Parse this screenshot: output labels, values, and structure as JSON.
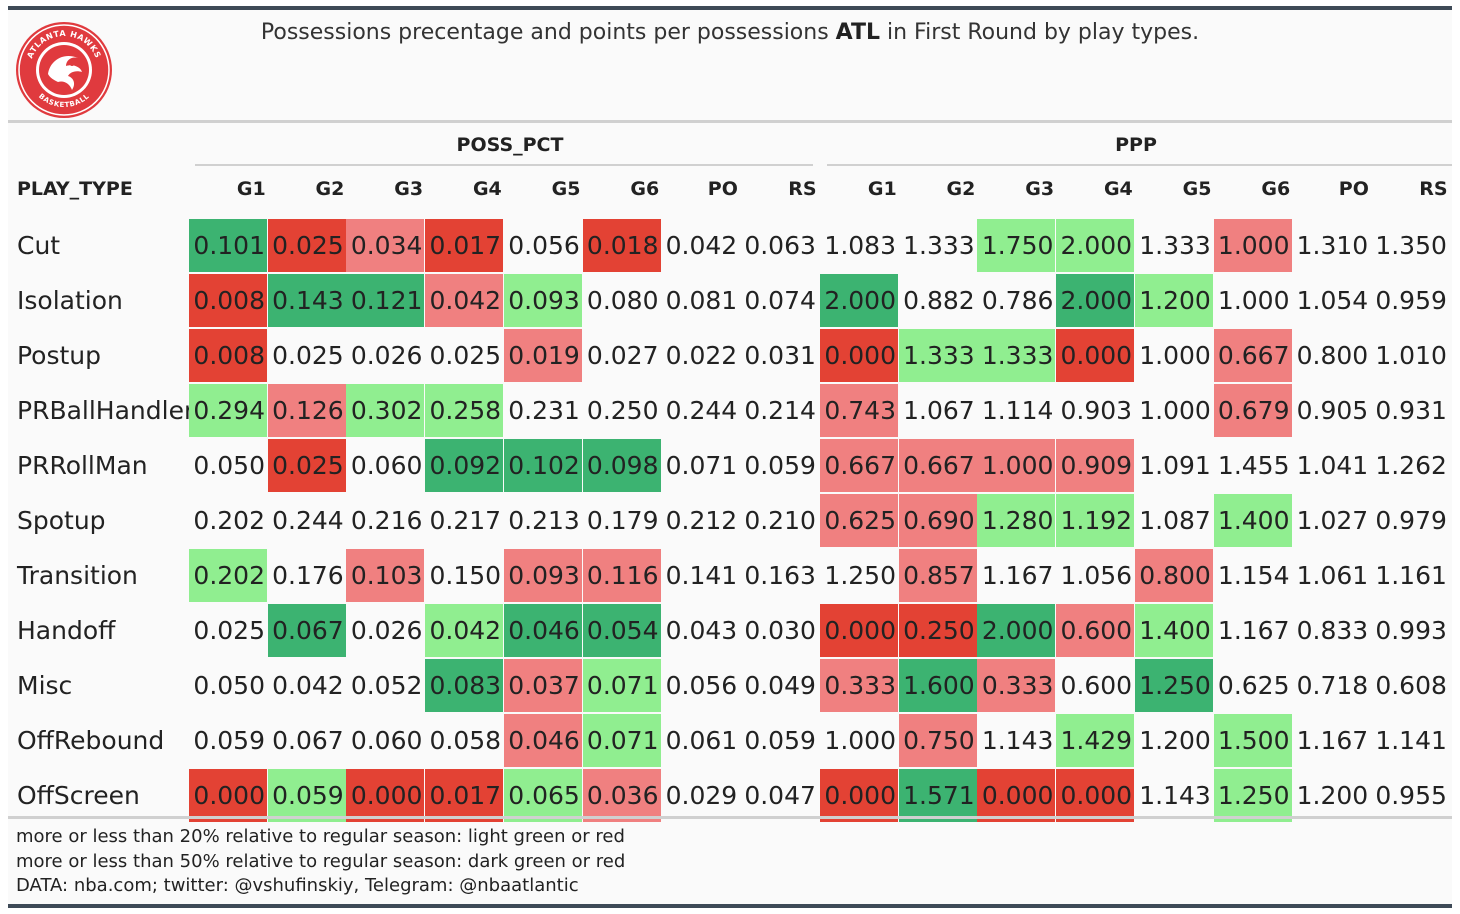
{
  "title": {
    "before": "Possessions precentage and points per possessions ",
    "team": "ATL",
    "after": " in First Round by play types."
  },
  "logo": {
    "ring_top_text": "ATLANTA HAWKS",
    "ring_bottom_text": "BASKETBALL",
    "colors": {
      "red": "#e03a3e",
      "white": "#ffffff"
    }
  },
  "groups": {
    "poss": "POSS_PCT",
    "ppp": "PPP"
  },
  "row_header": "PLAY_TYPE",
  "columns": [
    "G1",
    "G2",
    "G3",
    "G4",
    "G5",
    "G6",
    "PO",
    "RS"
  ],
  "colors": {
    "dark_green": "#3cb371",
    "light_green": "#90ee90",
    "light_red": "#f08080",
    "dark_red": "#e34234",
    "none": "transparent"
  },
  "rows": [
    {
      "play_type": "Cut",
      "poss": [
        "0.101",
        "0.025",
        "0.034",
        "0.017",
        "0.056",
        "0.018",
        "0.042",
        "0.063"
      ],
      "poss_c": [
        "dg",
        "dr",
        "lr",
        "dr",
        "",
        "dr",
        "",
        ""
      ],
      "ppp": [
        "1.083",
        "1.333",
        "1.750",
        "2.000",
        "1.333",
        "1.000",
        "1.310",
        "1.350"
      ],
      "ppp_c": [
        "",
        "",
        "lg",
        "lg",
        "",
        "lr",
        "",
        ""
      ]
    },
    {
      "play_type": "Isolation",
      "poss": [
        "0.008",
        "0.143",
        "0.121",
        "0.042",
        "0.093",
        "0.080",
        "0.081",
        "0.074"
      ],
      "poss_c": [
        "dr",
        "dg",
        "dg",
        "lr",
        "lg",
        "",
        "",
        ""
      ],
      "ppp": [
        "2.000",
        "0.882",
        "0.786",
        "2.000",
        "1.200",
        "1.000",
        "1.054",
        "0.959"
      ],
      "ppp_c": [
        "dg",
        "",
        "",
        "dg",
        "lg",
        "",
        "",
        ""
      ]
    },
    {
      "play_type": "Postup",
      "poss": [
        "0.008",
        "0.025",
        "0.026",
        "0.025",
        "0.019",
        "0.027",
        "0.022",
        "0.031"
      ],
      "poss_c": [
        "dr",
        "",
        "",
        "",
        "lr",
        "",
        "",
        ""
      ],
      "ppp": [
        "0.000",
        "1.333",
        "1.333",
        "0.000",
        "1.000",
        "0.667",
        "0.800",
        "1.010"
      ],
      "ppp_c": [
        "dr",
        "lg",
        "lg",
        "dr",
        "",
        "lr",
        "",
        ""
      ]
    },
    {
      "play_type": "PRBallHandler",
      "poss": [
        "0.294",
        "0.126",
        "0.302",
        "0.258",
        "0.231",
        "0.250",
        "0.244",
        "0.214"
      ],
      "poss_c": [
        "lg",
        "lr",
        "lg",
        "lg",
        "",
        "",
        "",
        ""
      ],
      "ppp": [
        "0.743",
        "1.067",
        "1.114",
        "0.903",
        "1.000",
        "0.679",
        "0.905",
        "0.931"
      ],
      "ppp_c": [
        "lr",
        "",
        "",
        "",
        "",
        "lr",
        "",
        ""
      ]
    },
    {
      "play_type": "PRRollMan",
      "poss": [
        "0.050",
        "0.025",
        "0.060",
        "0.092",
        "0.102",
        "0.098",
        "0.071",
        "0.059"
      ],
      "poss_c": [
        "",
        "dr",
        "",
        "dg",
        "dg",
        "dg",
        "",
        ""
      ],
      "ppp": [
        "0.667",
        "0.667",
        "1.000",
        "0.909",
        "1.091",
        "1.455",
        "1.041",
        "1.262"
      ],
      "ppp_c": [
        "lr",
        "lr",
        "lr",
        "lr",
        "",
        "",
        "",
        ""
      ]
    },
    {
      "play_type": "Spotup",
      "poss": [
        "0.202",
        "0.244",
        "0.216",
        "0.217",
        "0.213",
        "0.179",
        "0.212",
        "0.210"
      ],
      "poss_c": [
        "",
        "",
        "",
        "",
        "",
        "",
        "",
        ""
      ],
      "ppp": [
        "0.625",
        "0.690",
        "1.280",
        "1.192",
        "1.087",
        "1.400",
        "1.027",
        "0.979"
      ],
      "ppp_c": [
        "lr",
        "lr",
        "lg",
        "lg",
        "",
        "lg",
        "",
        ""
      ]
    },
    {
      "play_type": "Transition",
      "poss": [
        "0.202",
        "0.176",
        "0.103",
        "0.150",
        "0.093",
        "0.116",
        "0.141",
        "0.163"
      ],
      "poss_c": [
        "lg",
        "",
        "lr",
        "",
        "lr",
        "lr",
        "",
        ""
      ],
      "ppp": [
        "1.250",
        "0.857",
        "1.167",
        "1.056",
        "0.800",
        "1.154",
        "1.061",
        "1.161"
      ],
      "ppp_c": [
        "",
        "lr",
        "",
        "",
        "lr",
        "",
        "",
        ""
      ]
    },
    {
      "play_type": "Handoff",
      "poss": [
        "0.025",
        "0.067",
        "0.026",
        "0.042",
        "0.046",
        "0.054",
        "0.043",
        "0.030"
      ],
      "poss_c": [
        "",
        "dg",
        "",
        "lg",
        "dg",
        "dg",
        "",
        ""
      ],
      "ppp": [
        "0.000",
        "0.250",
        "2.000",
        "0.600",
        "1.400",
        "1.167",
        "0.833",
        "0.993"
      ],
      "ppp_c": [
        "dr",
        "dr",
        "dg",
        "lr",
        "lg",
        "",
        "",
        ""
      ]
    },
    {
      "play_type": "Misc",
      "poss": [
        "0.050",
        "0.042",
        "0.052",
        "0.083",
        "0.037",
        "0.071",
        "0.056",
        "0.049"
      ],
      "poss_c": [
        "",
        "",
        "",
        "dg",
        "lr",
        "lg",
        "",
        ""
      ],
      "ppp": [
        "0.333",
        "1.600",
        "0.333",
        "0.600",
        "1.250",
        "0.625",
        "0.718",
        "0.608"
      ],
      "ppp_c": [
        "lr",
        "dg",
        "lr",
        "",
        "dg",
        "",
        "",
        ""
      ]
    },
    {
      "play_type": "OffRebound",
      "poss": [
        "0.059",
        "0.067",
        "0.060",
        "0.058",
        "0.046",
        "0.071",
        "0.061",
        "0.059"
      ],
      "poss_c": [
        "",
        "",
        "",
        "",
        "lr",
        "lg",
        "",
        ""
      ],
      "ppp": [
        "1.000",
        "0.750",
        "1.143",
        "1.429",
        "1.200",
        "1.500",
        "1.167",
        "1.141"
      ],
      "ppp_c": [
        "",
        "lr",
        "",
        "lg",
        "",
        "lg",
        "",
        ""
      ]
    },
    {
      "play_type": "OffScreen",
      "poss": [
        "0.000",
        "0.059",
        "0.000",
        "0.017",
        "0.065",
        "0.036",
        "0.029",
        "0.047"
      ],
      "poss_c": [
        "dr",
        "lg",
        "dr",
        "dr",
        "lg",
        "lr",
        "",
        ""
      ],
      "ppp": [
        "0.000",
        "1.571",
        "0.000",
        "0.000",
        "1.143",
        "1.250",
        "1.200",
        "0.955"
      ],
      "ppp_c": [
        "dr",
        "dg",
        "dr",
        "dr",
        "",
        "lg",
        "",
        ""
      ]
    }
  ],
  "notes": {
    "line1": "more or less than 20% relative to regular season: light green or red",
    "line2": "more or less than 50% relative to regular season: dark green or red",
    "line3": "DATA: nba.com; twitter: @vshufinskiy, Telegram: @nbaatlantic"
  }
}
